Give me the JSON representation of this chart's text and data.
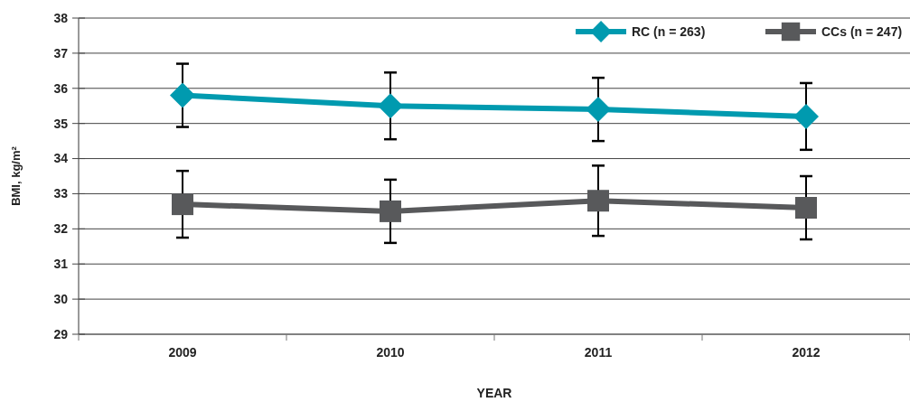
{
  "chart_data": {
    "type": "line",
    "xlabel": "YEAR",
    "ylabel": "BMI, kg/m²",
    "categories": [
      "2009",
      "2010",
      "2011",
      "2012"
    ],
    "series": [
      {
        "name": "RC (n = 263)",
        "color": "#009aaf",
        "marker": "diamond",
        "values": [
          35.8,
          35.5,
          35.4,
          35.2
        ],
        "errors": [
          0.9,
          0.95,
          0.9,
          0.95
        ]
      },
      {
        "name": "CCs (n = 247)",
        "color": "#58595b",
        "marker": "square",
        "values": [
          32.7,
          32.5,
          32.8,
          32.6
        ],
        "errors": [
          0.95,
          0.9,
          1.0,
          0.9
        ]
      }
    ],
    "ylim": [
      29,
      38
    ],
    "yticks": [
      29,
      30,
      31,
      32,
      33,
      34,
      35,
      36,
      37,
      38
    ],
    "grid": "y",
    "legend": "top right"
  }
}
